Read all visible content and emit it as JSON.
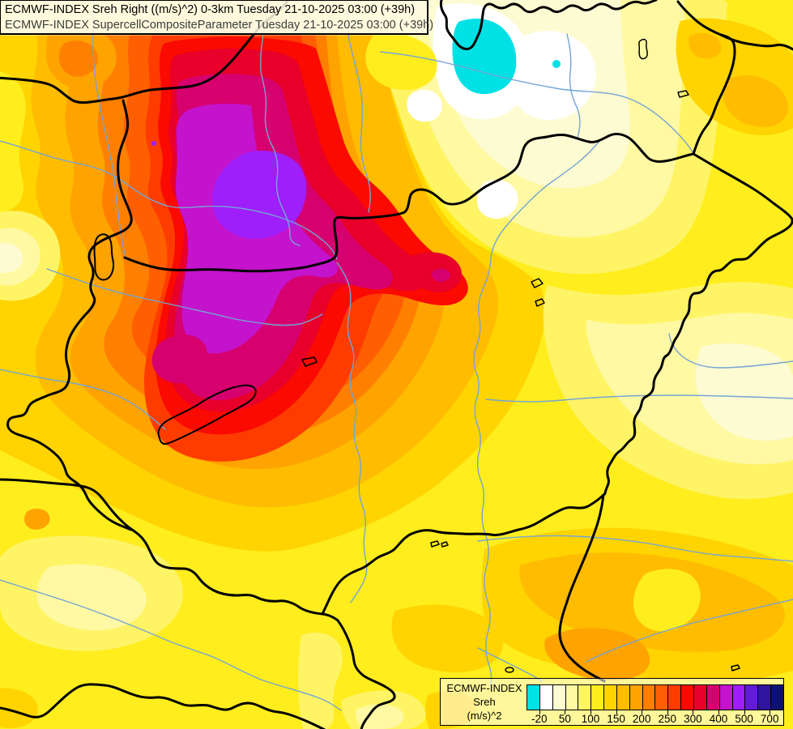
{
  "title_bar": {
    "line1": "ECMWF-INDEX Sreh Right ((m/s)^2) 0-3km Tuesday 21-10-2025 03:00 (+39h)",
    "line2": "ECMWF-INDEX SupercellCompositeParameter Tuesday 21-10-2025 03:00 (+39h)"
  },
  "legend": {
    "product": "ECMWF-INDEX",
    "parameter": "Sreh",
    "units": "(m/s)^2",
    "tick_labels": [
      "-20",
      "50",
      "100",
      "150",
      "200",
      "250",
      "300",
      "400",
      "500",
      "700"
    ],
    "tick_cell_boundaries": [
      1,
      3,
      5,
      7,
      9,
      11,
      13,
      15,
      17,
      19
    ],
    "palette": [
      "#00E1E6",
      "#FFFFFF",
      "#FDFBD2",
      "#FFF9A4",
      "#FFF466",
      "#FFED1E",
      "#FFD400",
      "#FFBC00",
      "#FFA300",
      "#FF8000",
      "#FF5F00",
      "#FF3C00",
      "#FA0A00",
      "#E8002A",
      "#D6006E",
      "#C413CC",
      "#9E1FFA",
      "#641BD8",
      "#2F169E",
      "#0D1270"
    ]
  },
  "map": {
    "border_color": "#000000",
    "river_color": "#74A4D4",
    "lake_outline_color": "#000000",
    "title_text_color": "#000000",
    "subtitle_text_color": "#3C3C3C"
  }
}
